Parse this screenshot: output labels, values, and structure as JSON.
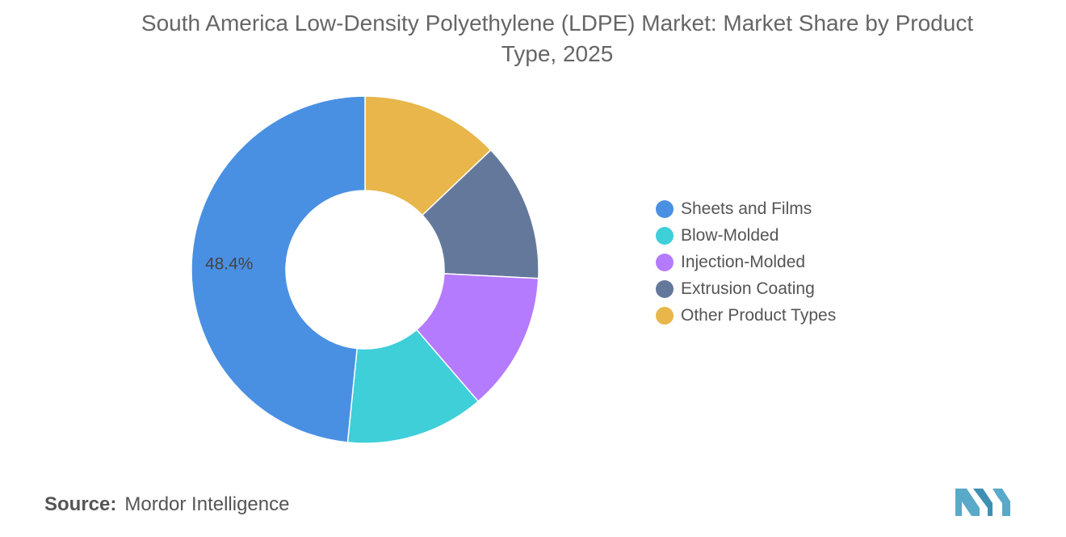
{
  "chart_data": {
    "type": "pie",
    "donut": true,
    "title": "South America Low-Density Polyethylene (LDPE) Market: Market Share by Product Type, 2025",
    "categories": [
      "Sheets and Films",
      "Blow-Molded",
      "Injection-Molded",
      "Extrusion Coating",
      "Other Product Types"
    ],
    "values": [
      48.4,
      12.9,
      12.9,
      12.9,
      12.9
    ],
    "colors": [
      "#4a90e2",
      "#3ecfd9",
      "#b57bff",
      "#64789b",
      "#e8b64a"
    ],
    "data_labels": [
      "48.4%",
      "",
      "",
      "",
      ""
    ],
    "legend_position": "right"
  },
  "source": {
    "label": "Source:",
    "value": "Mordor Intelligence"
  },
  "logo": {
    "name": "mordor-intelligence-logo",
    "color": "#5aa9c8"
  }
}
